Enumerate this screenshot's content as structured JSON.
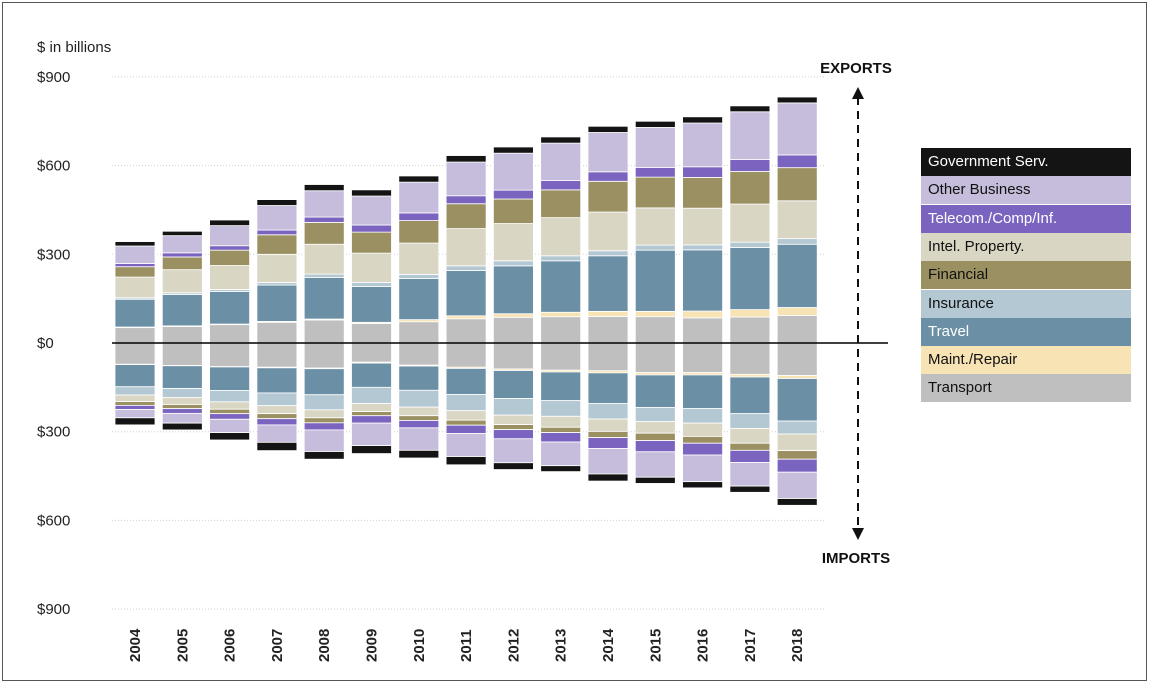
{
  "chart_data": {
    "type": "bar",
    "subtype": "stacked-diverging",
    "unit_label": "$ in billions",
    "y_ticks": [
      "$900",
      "$600",
      "$300",
      "$0",
      "$300",
      "$600",
      "$900"
    ],
    "ylim": [
      -900,
      900
    ],
    "grid": true,
    "positive_label": "EXPORTS",
    "negative_label": "IMPORTS",
    "legend_position": "right",
    "categories": [
      "2004",
      "2005",
      "2006",
      "2007",
      "2008",
      "2009",
      "2010",
      "2011",
      "2012",
      "2013",
      "2014",
      "2015",
      "2016",
      "2017",
      "2018"
    ],
    "series": [
      {
        "name": "Transport",
        "color": "#bfbfbf",
        "exports": [
          52,
          56,
          62,
          70,
          78,
          66,
          72,
          82,
          87,
          89,
          90,
          89,
          85,
          88,
          93
        ],
        "imports": [
          -72,
          -76,
          -80,
          -82,
          -85,
          -65,
          -75,
          -82,
          -88,
          -92,
          -94,
          -100,
          -100,
          -106,
          -110
        ]
      },
      {
        "name": "Maint./Repair",
        "color": "#f7e3b4",
        "exports": [
          2,
          2,
          2,
          3,
          3,
          4,
          7,
          10,
          12,
          15,
          17,
          18,
          23,
          25,
          27
        ],
        "imports": [
          -1,
          -1,
          -1,
          -2,
          -2,
          -3,
          -3,
          -4,
          -5,
          -6,
          -7,
          -8,
          -8,
          -9,
          -10
        ]
      },
      {
        "name": "Travel",
        "color": "#6b8fa5",
        "exports": [
          94,
          106,
          110,
          123,
          141,
          121,
          139,
          153,
          162,
          174,
          188,
          207,
          207,
          210,
          214
        ],
        "imports": [
          -75,
          -77,
          -80,
          -85,
          -88,
          -82,
          -82,
          -88,
          -95,
          -97,
          -104,
          -110,
          -114,
          -124,
          -144
        ]
      },
      {
        "name": "Insurance",
        "color": "#b4c8d3",
        "exports": [
          5,
          6,
          7,
          9,
          11,
          14,
          14,
          16,
          17,
          17,
          17,
          17,
          17,
          18,
          19
        ],
        "imports": [
          -28,
          -30,
          -38,
          -43,
          -51,
          -55,
          -57,
          -55,
          -56,
          -53,
          -52,
          -48,
          -49,
          -50,
          -44
        ]
      },
      {
        "name": "Intel. Property.",
        "color": "#d9d6c4",
        "exports": [
          70,
          78,
          81,
          95,
          101,
          99,
          106,
          126,
          126,
          129,
          131,
          126,
          124,
          129,
          128
        ],
        "imports": [
          -22,
          -24,
          -25,
          -27,
          -27,
          -27,
          -29,
          -32,
          -32,
          -37,
          -42,
          -39,
          -45,
          -50,
          -56
        ]
      },
      {
        "name": "Financial",
        "color": "#9a9061",
        "exports": [
          35,
          43,
          52,
          66,
          74,
          71,
          76,
          84,
          83,
          94,
          104,
          104,
          104,
          110,
          112
        ],
        "imports": [
          -13,
          -14,
          -15,
          -17,
          -17,
          -14,
          -16,
          -17,
          -17,
          -18,
          -21,
          -25,
          -23,
          -24,
          -29
        ]
      },
      {
        "name": "Telecom./Comp/Inf.",
        "color": "#7b64c0",
        "exports": [
          11,
          14,
          15,
          16,
          18,
          24,
          26,
          27,
          30,
          32,
          32,
          33,
          36,
          41,
          43
        ],
        "imports": [
          -14,
          -16,
          -19,
          -21,
          -24,
          -25,
          -25,
          -28,
          -31,
          -32,
          -37,
          -38,
          -40,
          -41,
          -44
        ]
      },
      {
        "name": "Other Business",
        "color": "#c6bcdb",
        "exports": [
          59,
          58,
          68,
          83,
          89,
          98,
          104,
          114,
          125,
          126,
          133,
          135,
          148,
          161,
          176
        ],
        "imports": [
          -28,
          -33,
          -45,
          -59,
          -73,
          -76,
          -76,
          -78,
          -81,
          -80,
          -86,
          -86,
          -90,
          -80,
          -89
        ]
      },
      {
        "name": "Government Serv.",
        "color": "#141414",
        "exports": [
          15,
          15,
          19,
          20,
          21,
          21,
          21,
          22,
          21,
          21,
          21,
          21,
          21,
          20,
          20
        ],
        "imports": [
          -24,
          -23,
          -25,
          -28,
          -26,
          -27,
          -26,
          -28,
          -23,
          -20,
          -24,
          -21,
          -21,
          -21,
          -23
        ]
      }
    ],
    "legend_order": [
      "Government Serv.",
      "Other Business",
      "Telecom./Comp/Inf.",
      "Intel. Property.",
      "Financial",
      "Insurance",
      "Travel",
      "Maint./Repair",
      "Transport"
    ],
    "legend_text_colors": {
      "Government Serv.": "#ffffff",
      "Other Business": "#111111",
      "Telecom./Comp/Inf.": "#ffffff",
      "Intel. Property.": "#111111",
      "Financial": "#111111",
      "Insurance": "#111111",
      "Travel": "#ffffff",
      "Maint./Repair": "#111111",
      "Transport": "#111111"
    }
  }
}
